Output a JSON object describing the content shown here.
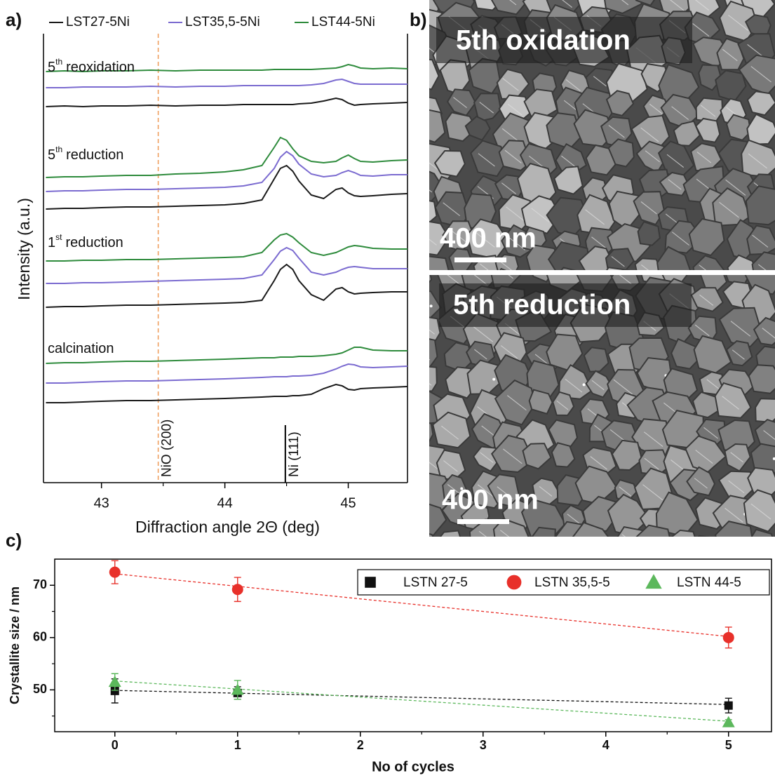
{
  "chart_data": [
    {
      "type": "line",
      "panel_label": "a)",
      "x_label": "Diffraction angle 2Θ (deg)",
      "y_label": "Intensity (a.u.)",
      "xlim": [
        42.53,
        45.48
      ],
      "xticks": [
        43,
        44,
        45
      ],
      "xticks_minor": [
        43.5,
        44.5
      ],
      "ylim": [
        0,
        640
      ],
      "series": [
        {
          "name": "LST27-5Ni",
          "color": "#1a1a1a"
        },
        {
          "name": "LST35,5-5Ni",
          "color": "#7b6bd0"
        },
        {
          "name": "LST44-5Ni",
          "color": "#2e8b3c"
        }
      ],
      "x": [
        42.55,
        42.7,
        42.85,
        43.0,
        43.2,
        43.4,
        43.6,
        43.8,
        44.0,
        44.15,
        44.3,
        44.4,
        44.45,
        44.5,
        44.55,
        44.6,
        44.7,
        44.8,
        44.9,
        44.95,
        45.0,
        45.05,
        45.1,
        45.2,
        45.35,
        45.48
      ],
      "groups": [
        {
          "label": {
            "number": "5",
            "sup": "th",
            "text": "reoxidation"
          },
          "values": [
            [
              536,
              537,
              536,
              537,
              537,
              538,
              537,
              538,
              538,
              539,
              539,
              539,
              539,
              539,
              539,
              540,
              541,
              544,
              548,
              546,
              541,
              538,
              539,
              540,
              541,
              542
            ],
            [
              563,
              563,
              564,
              564,
              564,
              565,
              564,
              565,
              565,
              566,
              566,
              566,
              566,
              566,
              566,
              566,
              567,
              569,
              574,
              575,
              572,
              569,
              568,
              568,
              568,
              568
            ],
            [
              586,
              587,
              586,
              587,
              587,
              588,
              587,
              588,
              588,
              588,
              588,
              589,
              589,
              589,
              589,
              589,
              589,
              590,
              591,
              593,
              596,
              594,
              591,
              590,
              591,
              590
            ]
          ]
        },
        {
          "label": {
            "number": "5",
            "sup": "th",
            "text": "reduction"
          },
          "values": [
            [
              390,
              391,
              391,
              392,
              393,
              393,
              394,
              395,
              396,
              398,
              403,
              433,
              448,
              452,
              444,
              430,
              410,
              405,
              418,
              420,
              413,
              409,
              408,
              409,
              411,
              412
            ],
            [
              415,
              416,
              416,
              417,
              418,
              418,
              419,
              420,
              421,
              423,
              428,
              448,
              464,
              472,
              466,
              454,
              440,
              436,
              438,
              442,
              445,
              442,
              438,
              437,
              439,
              439
            ],
            [
              435,
              436,
              436,
              437,
              438,
              438,
              440,
              441,
              443,
              446,
              452,
              478,
              492,
              488,
              476,
              466,
              458,
              456,
              458,
              463,
              467,
              462,
              458,
              457,
              459,
              460
            ]
          ]
        },
        {
          "label": {
            "number": "1",
            "sup": "st",
            "text": "reduction"
          },
          "values": [
            [
              250,
              251,
              251,
              252,
              253,
              253,
              254,
              255,
              256,
              257,
              260,
              288,
              304,
              311,
              304,
              288,
              268,
              260,
              276,
              278,
              272,
              269,
              270,
              271,
              272,
              272
            ],
            [
              284,
              284,
              285,
              285,
              286,
              287,
              288,
              289,
              290,
              291,
              296,
              318,
              330,
              335,
              331,
              320,
              300,
              296,
              300,
              304,
              307,
              308,
              307,
              305,
              305,
              305
            ],
            [
              316,
              316,
              317,
              317,
              318,
              318,
              319,
              320,
              321,
              322,
              328,
              346,
              353,
              355,
              350,
              342,
              328,
              324,
              328,
              332,
              336,
              338,
              337,
              334,
              333,
              333
            ]
          ]
        },
        {
          "label": {
            "text": "calcination"
          },
          "values": [
            [
              114,
              114,
              115,
              116,
              117,
              117,
              118,
              119,
              120,
              121,
              122,
              123,
              123,
              123,
              124,
              124,
              126,
              134,
              140,
              138,
              133,
              132,
              134,
              135,
              136,
              137
            ],
            [
              142,
              142,
              143,
              144,
              145,
              145,
              146,
              147,
              148,
              149,
              150,
              151,
              151,
              151,
              152,
              152,
              153,
              156,
              162,
              166,
              169,
              168,
              165,
              164,
              165,
              166
            ],
            [
              170,
              171,
              171,
              172,
              173,
              173,
              174,
              175,
              176,
              177,
              178,
              178,
              179,
              179,
              179,
              180,
              180,
              181,
              183,
              185,
              189,
              193,
              193,
              189,
              188,
              188
            ]
          ]
        }
      ],
      "references": [
        {
          "x": 43.46,
          "label": "NiO (200)",
          "style": "dashed",
          "color": "#f0a060"
        },
        {
          "x": 44.49,
          "label": "Ni (111)",
          "height": 82,
          "style": "solid",
          "color": "#000000"
        }
      ]
    },
    {
      "type": "scatter",
      "panel_label": "c)",
      "x_label": "No of cycles",
      "y_label": "Crystallite size / nm",
      "x": [
        0,
        1,
        5
      ],
      "xlim": [
        -0.49,
        5.35
      ],
      "xticks": [
        0,
        1,
        2,
        3,
        4,
        5
      ],
      "xticks_minor": [
        0.5,
        1.5,
        2.5,
        3.5,
        4.5
      ],
      "ylim": [
        42,
        75
      ],
      "yticks": [
        50,
        60,
        70
      ],
      "yticks_minor": [
        45,
        55,
        65
      ],
      "legend": "upper right",
      "series": [
        {
          "name": "LSTN 27-5",
          "color": "#111111",
          "marker": "square",
          "values": [
            49.8,
            49.4,
            47.0
          ],
          "errors": [
            2.3,
            1.2,
            1.4
          ],
          "trend": {
            "x": [
              0,
              5
            ],
            "values": [
              49.9,
              47.2
            ]
          }
        },
        {
          "name": "LSTN 35,5-5",
          "color": "#e8302a",
          "marker": "circle",
          "values": [
            72.5,
            69.2,
            60.0
          ],
          "errors": [
            2.2,
            2.3,
            2.0
          ],
          "trend": {
            "x": [
              0,
              5
            ],
            "values": [
              72.2,
              60.2
            ]
          }
        },
        {
          "name": "LSTN 44-5",
          "color": "#5cb85c",
          "marker": "triangle",
          "values": [
            51.5,
            50.0,
            43.8
          ],
          "errors": [
            1.6,
            1.8,
            0.5
          ],
          "trend": {
            "x": [
              0,
              5
            ],
            "values": [
              51.7,
              44.0
            ]
          }
        }
      ]
    }
  ],
  "sem_panel": {
    "panel_label": "b)",
    "images": [
      {
        "caption": "5th oxidation",
        "scale_bar": "400 nm"
      },
      {
        "caption": "5th reduction",
        "scale_bar": "400 nm"
      }
    ]
  }
}
